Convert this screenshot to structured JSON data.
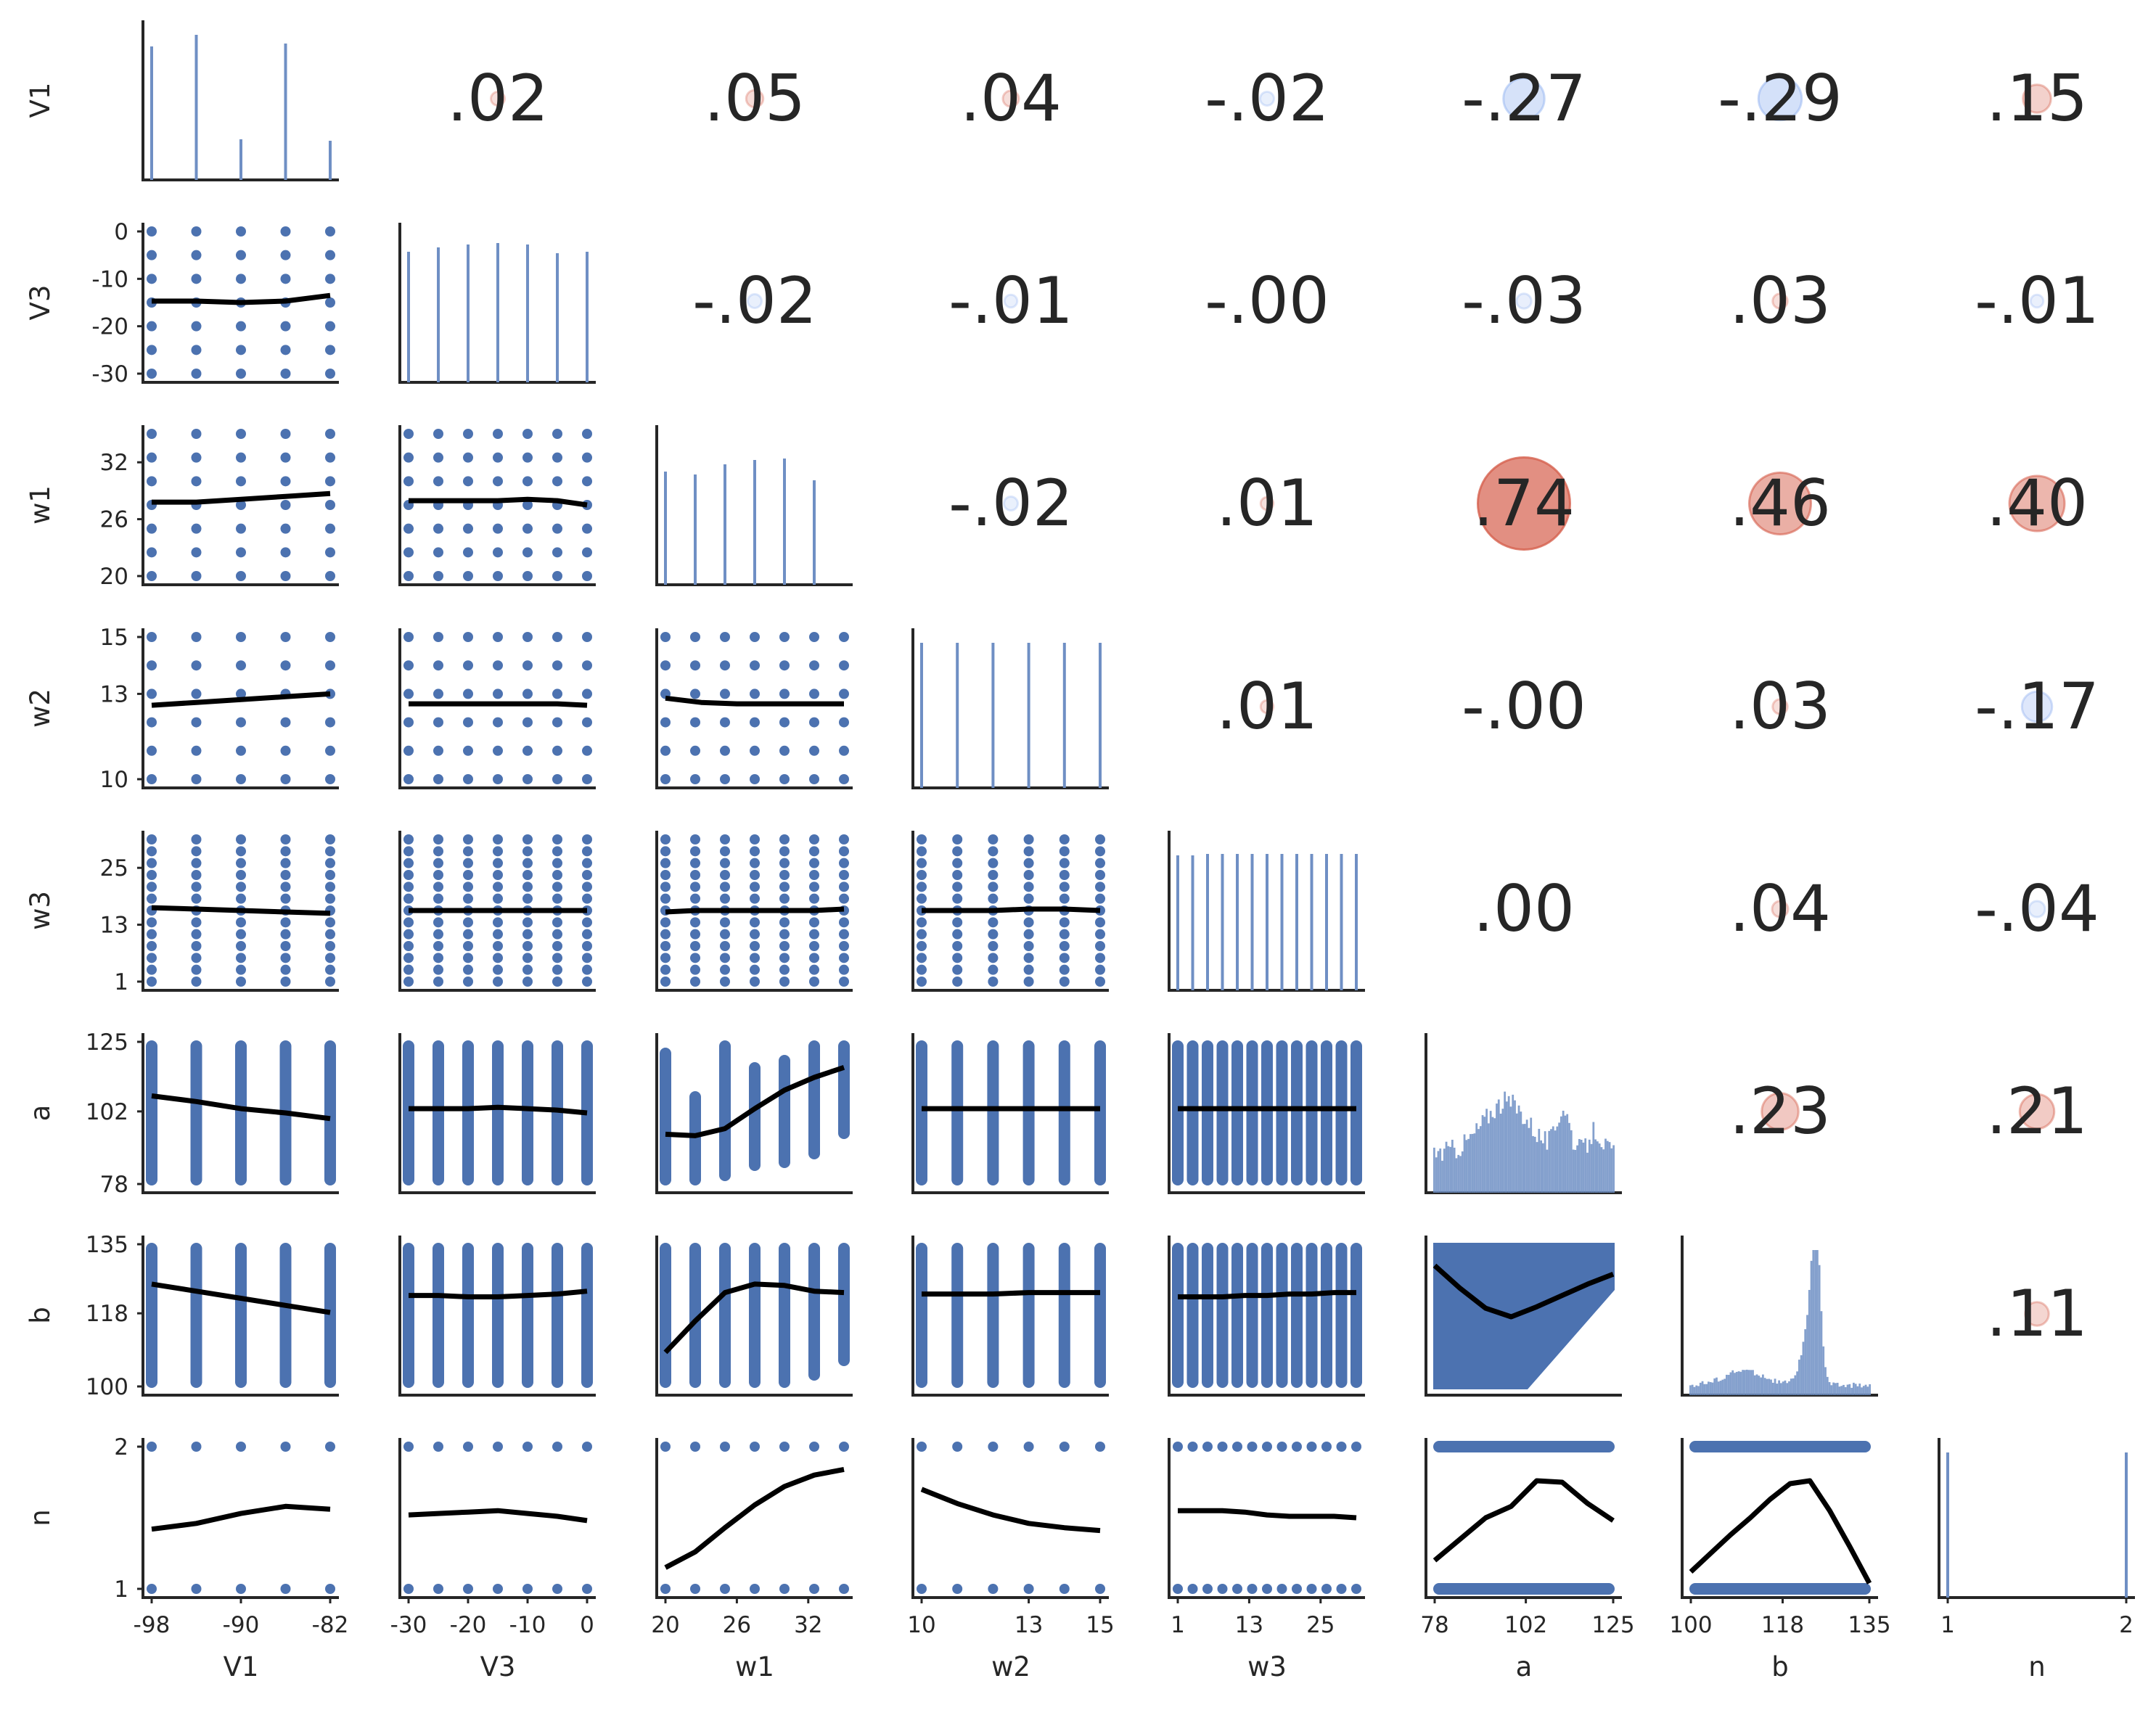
{
  "chart_data": {
    "type": "pairplot",
    "variables": [
      "V1",
      "V3",
      "w1",
      "w2",
      "w3",
      "a",
      "b",
      "n"
    ],
    "x_ticks": [
      [
        "-98",
        "-90",
        "-82"
      ],
      [
        "-30",
        "-20",
        "-10",
        "0"
      ],
      [
        "20",
        "26",
        "32"
      ],
      [
        "10",
        "13",
        "15"
      ],
      [
        "1",
        "13",
        "25"
      ],
      [
        "78",
        "102",
        "125"
      ],
      [
        "100",
        "118",
        "135"
      ],
      [
        "1",
        "2"
      ]
    ],
    "y_ticks": [
      [],
      [
        "0",
        "-10",
        "-20",
        "-30"
      ],
      [
        "32",
        "26",
        "20"
      ],
      [
        "15",
        "13",
        "10"
      ],
      [
        "25",
        "13",
        "1"
      ],
      [
        "125",
        "102",
        "78"
      ],
      [
        "135",
        "118",
        "100"
      ],
      [
        "2",
        "1"
      ]
    ],
    "correlations": [
      {
        "row": "V1",
        "col": "V3",
        "label": ".02",
        "value": 0.02
      },
      {
        "row": "V1",
        "col": "w1",
        "label": ".05",
        "value": 0.05
      },
      {
        "row": "V1",
        "col": "w2",
        "label": ".04",
        "value": 0.04
      },
      {
        "row": "V1",
        "col": "w3",
        "label": "-.02",
        "value": -0.02
      },
      {
        "row": "V1",
        "col": "a",
        "label": "-.27",
        "value": -0.27
      },
      {
        "row": "V1",
        "col": "b",
        "label": "-.29",
        "value": -0.29
      },
      {
        "row": "V1",
        "col": "n",
        "label": ".15",
        "value": 0.15
      },
      {
        "row": "V3",
        "col": "w1",
        "label": "-.02",
        "value": -0.02
      },
      {
        "row": "V3",
        "col": "w2",
        "label": "-.01",
        "value": -0.01
      },
      {
        "row": "V3",
        "col": "w3",
        "label": "-.00",
        "value": -0.0
      },
      {
        "row": "V3",
        "col": "a",
        "label": "-.03",
        "value": -0.03
      },
      {
        "row": "V3",
        "col": "b",
        "label": ".03",
        "value": 0.03
      },
      {
        "row": "V3",
        "col": "n",
        "label": "-.01",
        "value": -0.01
      },
      {
        "row": "w1",
        "col": "w2",
        "label": "-.02",
        "value": -0.02
      },
      {
        "row": "w1",
        "col": "w3",
        "label": ".01",
        "value": 0.01
      },
      {
        "row": "w1",
        "col": "a",
        "label": ".74",
        "value": 0.74
      },
      {
        "row": "w1",
        "col": "b",
        "label": ".46",
        "value": 0.46
      },
      {
        "row": "w1",
        "col": "n",
        "label": ".40",
        "value": 0.4
      },
      {
        "row": "w2",
        "col": "w3",
        "label": ".01",
        "value": 0.01
      },
      {
        "row": "w2",
        "col": "a",
        "label": "-.00",
        "value": -0.0
      },
      {
        "row": "w2",
        "col": "b",
        "label": ".03",
        "value": 0.03
      },
      {
        "row": "w2",
        "col": "n",
        "label": "-.17",
        "value": -0.17
      },
      {
        "row": "w3",
        "col": "a",
        "label": ".00",
        "value": 0.0
      },
      {
        "row": "w3",
        "col": "b",
        "label": ".04",
        "value": 0.04
      },
      {
        "row": "w3",
        "col": "n",
        "label": "-.04",
        "value": -0.04
      },
      {
        "row": "a",
        "col": "b",
        "label": ".23",
        "value": 0.23
      },
      {
        "row": "a",
        "col": "n",
        "label": ".21",
        "value": 0.21
      },
      {
        "row": "b",
        "col": "n",
        "label": ".11",
        "value": 0.11
      }
    ],
    "lower_panels_description": "scatter points with black LOWESS trend lines",
    "diagonal_panels_description": "histograms of each variable",
    "colors": {
      "points": "#4c72b0",
      "hist": "#6f8fc4",
      "trend": "#000000",
      "positive": "#d65f4c",
      "negative": "#8fb0f0",
      "axis": "#262626"
    }
  }
}
